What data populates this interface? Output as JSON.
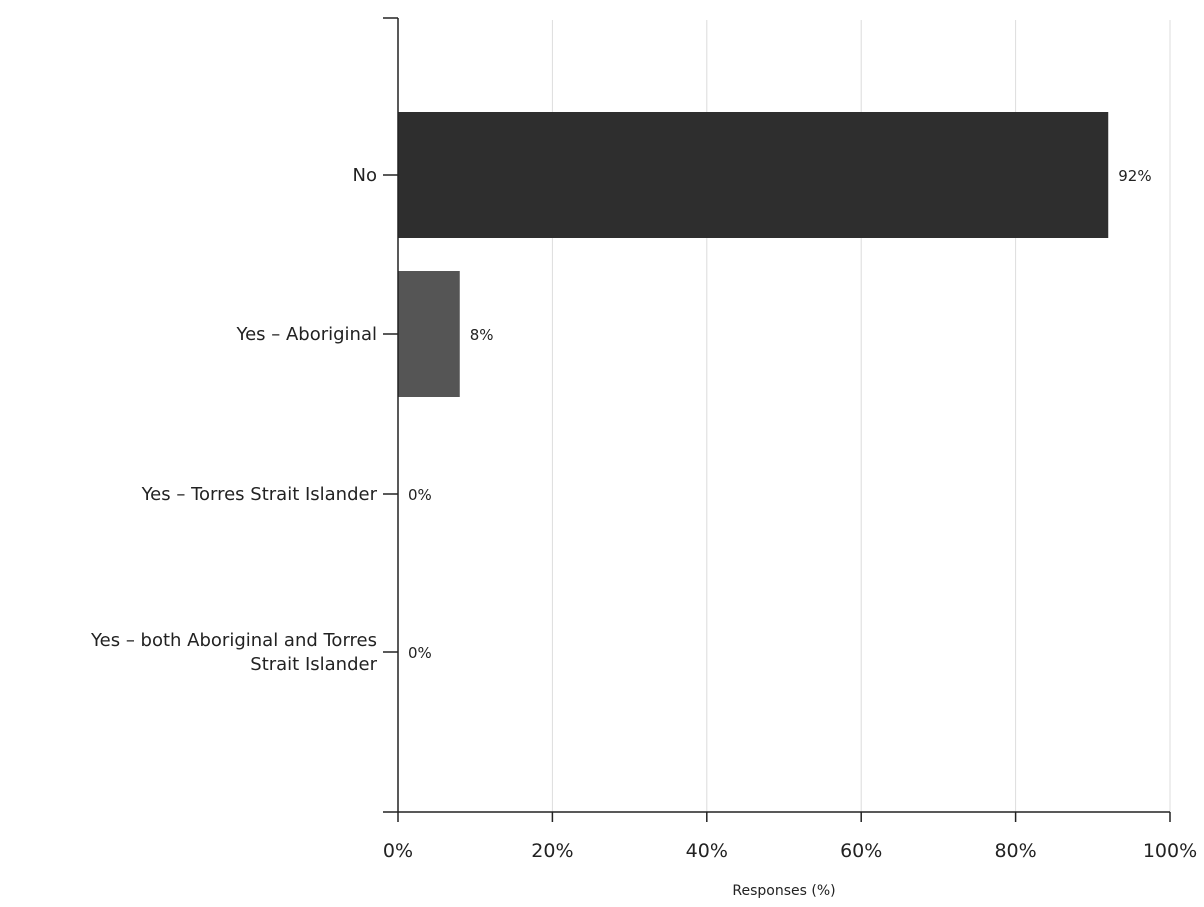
{
  "chart_data": {
    "type": "bar",
    "orientation": "horizontal",
    "categories": [
      [
        "No"
      ],
      [
        "Yes – Aboriginal"
      ],
      [
        "Yes – Torres Strait Islander"
      ],
      [
        "Yes – both Aboriginal and Torres",
        "Strait Islander"
      ]
    ],
    "values": [
      92,
      8,
      0,
      0
    ],
    "data_labels": [
      "92%",
      "8%",
      "0%",
      "0%"
    ],
    "xlim": [
      0,
      100
    ],
    "x_ticks": [
      0,
      20,
      40,
      60,
      80,
      100
    ],
    "x_tick_labels": [
      "0%",
      "20%",
      "40%",
      "60%",
      "80%",
      "100%"
    ],
    "xlabel": "Responses (%)",
    "ylabel": "",
    "title": "",
    "grid": "vertical",
    "legend": "none",
    "colors": {
      "bars": [
        "#2e2e2e",
        "#555555",
        "#555555",
        "#555555"
      ],
      "gridline": "#dcdcdc",
      "axis": "#222222"
    }
  }
}
